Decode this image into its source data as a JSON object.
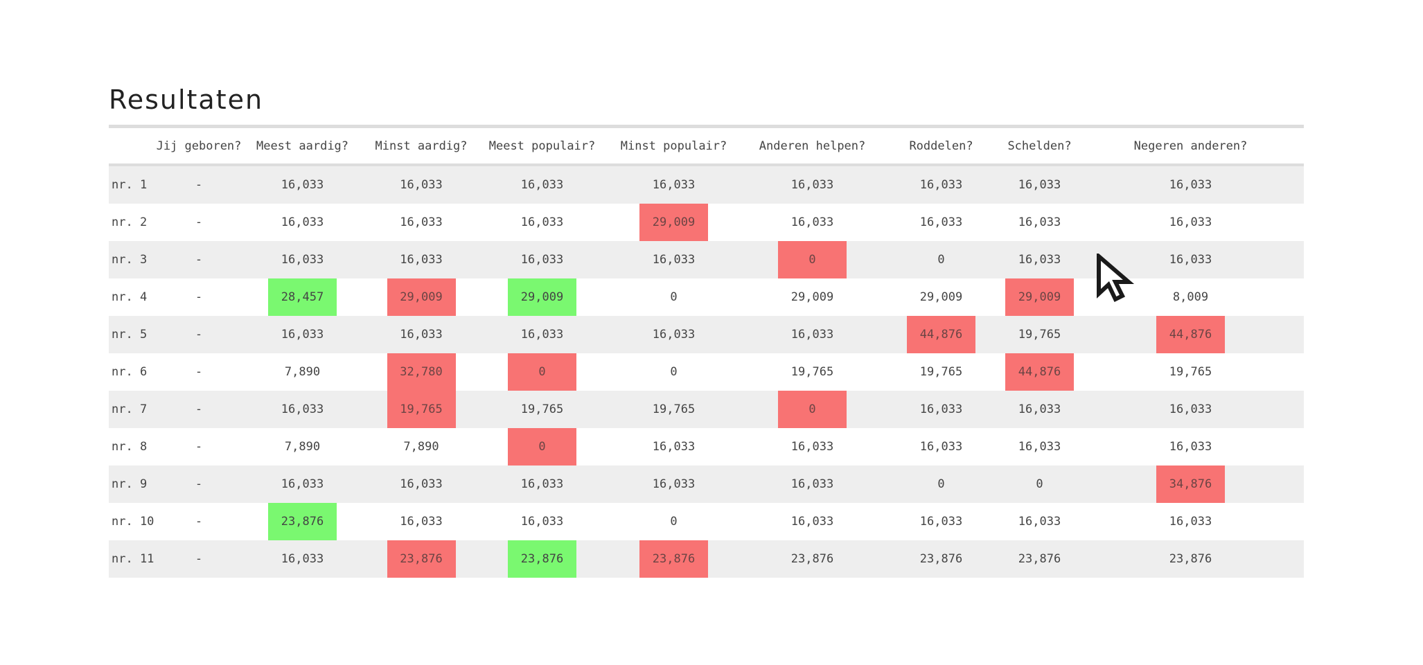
{
  "title": "Resultaten",
  "columns": [
    "",
    "Jij geboren?",
    "Meest aardig?",
    "Minst aardig?",
    "Meest populair?",
    "Minst populair?",
    "Anderen helpen?",
    "Roddelen?",
    "Schelden?",
    "Negeren anderen?"
  ],
  "colors": {
    "red": "#f87373",
    "green": "#7af870",
    "row_alt": "#eeeeee"
  },
  "rows": [
    {
      "label": "nr. 1",
      "cells": [
        {
          "v": "-"
        },
        {
          "v": "16,033"
        },
        {
          "v": "16,033"
        },
        {
          "v": "16,033"
        },
        {
          "v": "16,033"
        },
        {
          "v": "16,033"
        },
        {
          "v": "16,033"
        },
        {
          "v": "16,033"
        },
        {
          "v": "16,033"
        }
      ]
    },
    {
      "label": "nr. 2",
      "cells": [
        {
          "v": "-"
        },
        {
          "v": "16,033"
        },
        {
          "v": "16,033"
        },
        {
          "v": "16,033"
        },
        {
          "v": "29,009",
          "h": "red"
        },
        {
          "v": "16,033"
        },
        {
          "v": "16,033"
        },
        {
          "v": "16,033"
        },
        {
          "v": "16,033"
        }
      ]
    },
    {
      "label": "nr. 3",
      "cells": [
        {
          "v": "-"
        },
        {
          "v": "16,033"
        },
        {
          "v": "16,033"
        },
        {
          "v": "16,033"
        },
        {
          "v": "16,033"
        },
        {
          "v": "0",
          "h": "red"
        },
        {
          "v": "0"
        },
        {
          "v": "16,033"
        },
        {
          "v": "16,033"
        }
      ]
    },
    {
      "label": "nr. 4",
      "cells": [
        {
          "v": "-"
        },
        {
          "v": "28,457",
          "h": "green"
        },
        {
          "v": "29,009",
          "h": "red"
        },
        {
          "v": "29,009",
          "h": "green"
        },
        {
          "v": "0"
        },
        {
          "v": "29,009"
        },
        {
          "v": "29,009"
        },
        {
          "v": "29,009",
          "h": "red"
        },
        {
          "v": "8,009"
        }
      ]
    },
    {
      "label": "nr. 5",
      "cells": [
        {
          "v": "-"
        },
        {
          "v": "16,033"
        },
        {
          "v": "16,033"
        },
        {
          "v": "16,033"
        },
        {
          "v": "16,033"
        },
        {
          "v": "16,033"
        },
        {
          "v": "44,876",
          "h": "red"
        },
        {
          "v": "19,765"
        },
        {
          "v": "44,876",
          "h": "red"
        }
      ]
    },
    {
      "label": "nr. 6",
      "cells": [
        {
          "v": "-"
        },
        {
          "v": "7,890"
        },
        {
          "v": "32,780",
          "h": "red"
        },
        {
          "v": "0",
          "h": "red"
        },
        {
          "v": "0"
        },
        {
          "v": "19,765"
        },
        {
          "v": "19,765"
        },
        {
          "v": "44,876",
          "h": "red"
        },
        {
          "v": "19,765"
        }
      ]
    },
    {
      "label": "nr. 7",
      "cells": [
        {
          "v": "-"
        },
        {
          "v": "16,033"
        },
        {
          "v": "19,765",
          "h": "red"
        },
        {
          "v": "19,765"
        },
        {
          "v": "19,765"
        },
        {
          "v": "0",
          "h": "red"
        },
        {
          "v": "16,033"
        },
        {
          "v": "16,033"
        },
        {
          "v": "16,033"
        }
      ]
    },
    {
      "label": "nr. 8",
      "cells": [
        {
          "v": "-"
        },
        {
          "v": "7,890"
        },
        {
          "v": "7,890"
        },
        {
          "v": "0",
          "h": "red"
        },
        {
          "v": "16,033"
        },
        {
          "v": "16,033"
        },
        {
          "v": "16,033"
        },
        {
          "v": "16,033"
        },
        {
          "v": "16,033"
        }
      ]
    },
    {
      "label": "nr. 9",
      "cells": [
        {
          "v": "-"
        },
        {
          "v": "16,033"
        },
        {
          "v": "16,033"
        },
        {
          "v": "16,033"
        },
        {
          "v": "16,033"
        },
        {
          "v": "16,033"
        },
        {
          "v": "0"
        },
        {
          "v": "0"
        },
        {
          "v": "34,876",
          "h": "red"
        }
      ]
    },
    {
      "label": "nr. 10",
      "cells": [
        {
          "v": "-"
        },
        {
          "v": "23,876",
          "h": "green"
        },
        {
          "v": "16,033"
        },
        {
          "v": "16,033"
        },
        {
          "v": "0"
        },
        {
          "v": "16,033"
        },
        {
          "v": "16,033"
        },
        {
          "v": "16,033"
        },
        {
          "v": "16,033"
        }
      ]
    },
    {
      "label": "nr. 11",
      "cells": [
        {
          "v": "-"
        },
        {
          "v": "16,033"
        },
        {
          "v": "23,876",
          "h": "red"
        },
        {
          "v": "23,876",
          "h": "green"
        },
        {
          "v": "23,876",
          "h": "red"
        },
        {
          "v": "23,876"
        },
        {
          "v": "23,876"
        },
        {
          "v": "23,876"
        },
        {
          "v": "23,876"
        }
      ]
    }
  ],
  "cursor_icon": "arrow-cursor-icon"
}
